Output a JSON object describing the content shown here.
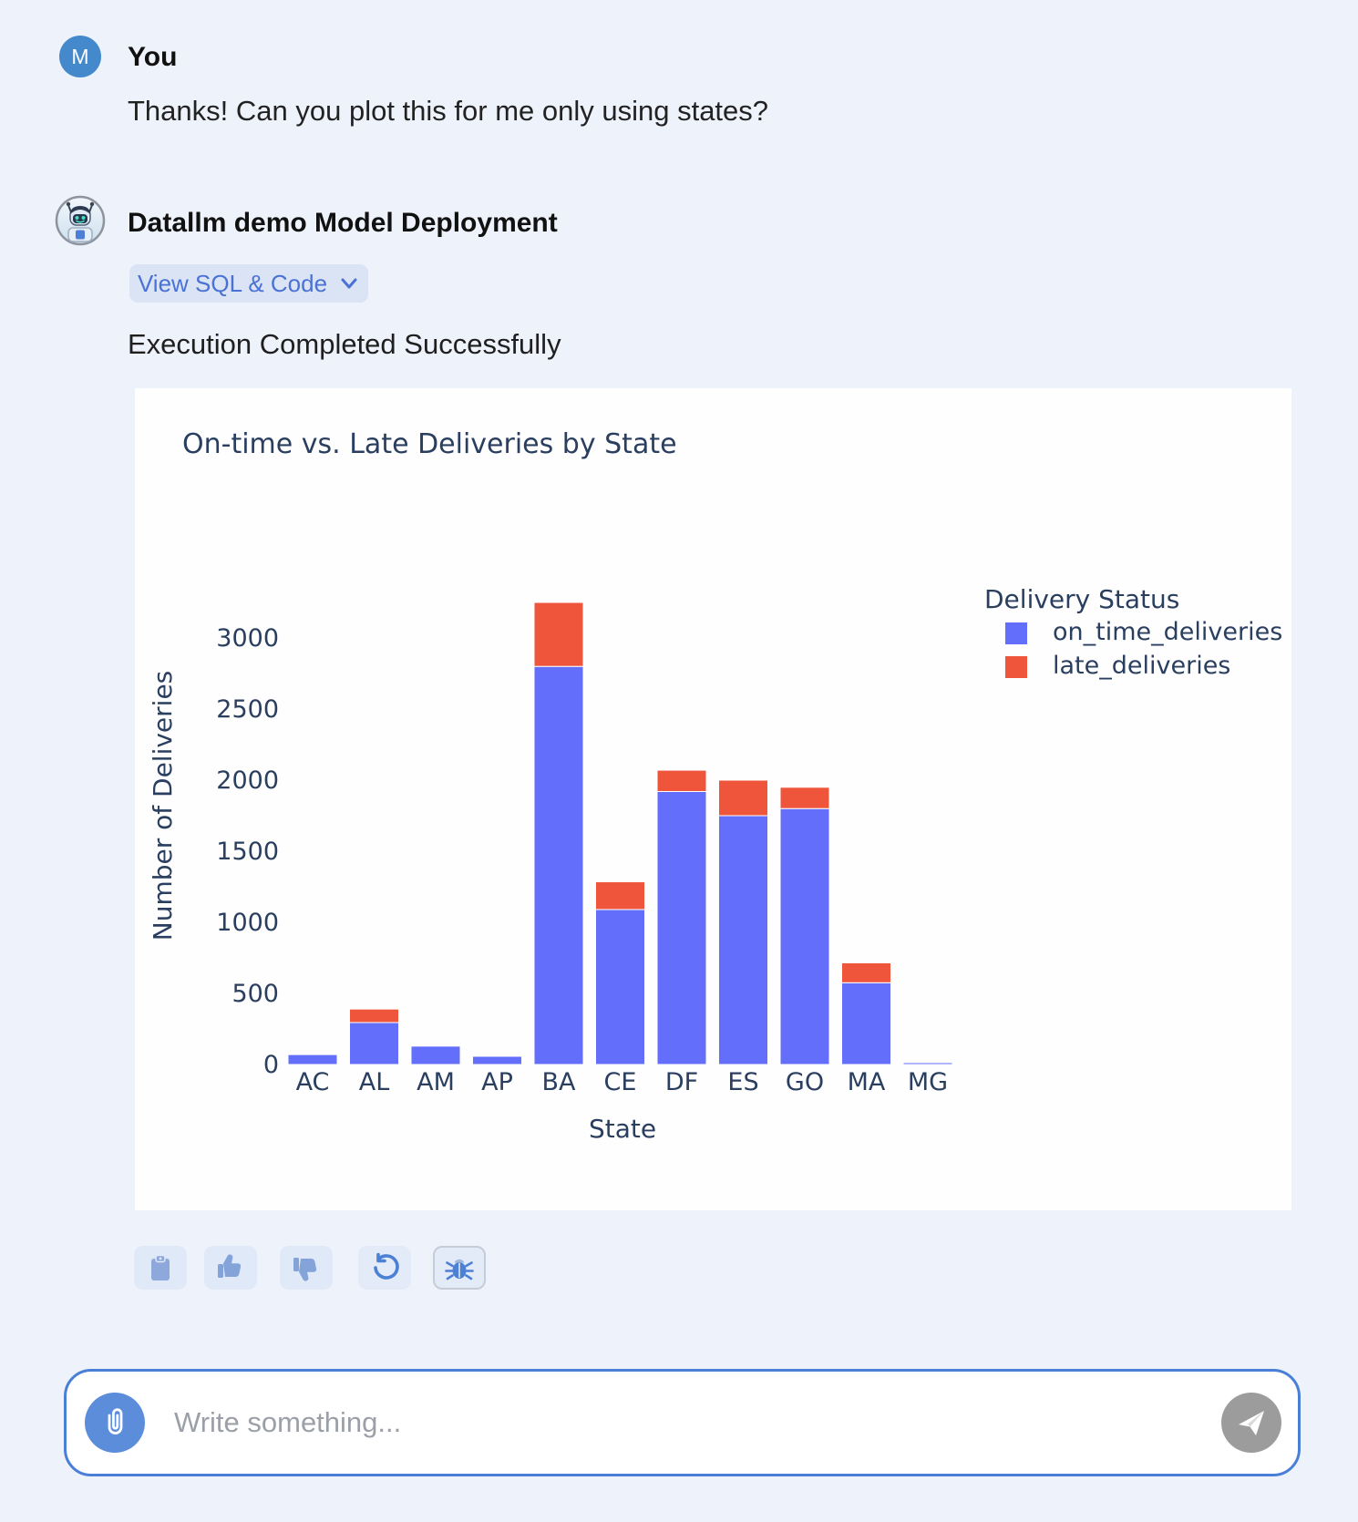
{
  "user_message": {
    "avatar_initial": "M",
    "sender": "You",
    "text": "Thanks! Can you plot this for me only using states?"
  },
  "bot_message": {
    "sender": "Datallm demo Model Deployment",
    "view_sql_button_label": "View SQL & Code",
    "status": "Execution Completed Successfully"
  },
  "chart_data": {
    "type": "bar",
    "stacked": true,
    "title": "On-time vs. Late Deliveries by State",
    "xlabel": "State",
    "ylabel": "Number of Deliveries",
    "legend_title": "Delivery Status",
    "legend_position": "top-right",
    "grid": false,
    "categories": [
      "AC",
      "AL",
      "AM",
      "AP",
      "BA",
      "CE",
      "DF",
      "ES",
      "GO",
      "MA",
      "MG"
    ],
    "series": [
      {
        "name": "on_time_deliveries",
        "color": "#636EFA",
        "values": [
          70,
          295,
          130,
          58,
          2800,
          1090,
          1920,
          1750,
          1800,
          575,
          12
        ]
      },
      {
        "name": "late_deliveries",
        "color": "#EF553B",
        "values": [
          5,
          95,
          6,
          4,
          450,
          195,
          150,
          250,
          150,
          140,
          3
        ]
      }
    ],
    "yticks": [
      0,
      500,
      1000,
      1500,
      2000,
      2500,
      3000
    ],
    "ylim": [
      0,
      3450
    ],
    "text_color": "#2a3f5f"
  },
  "actions": {
    "copy_label": "copy",
    "thumbs_up_label": "thumbs up",
    "thumbs_down_label": "thumbs down",
    "retry_label": "retry",
    "bug_label": "report bug"
  },
  "composer": {
    "placeholder": "Write something...",
    "attach_icon": "paperclip-icon",
    "send_icon": "paper-plane-icon"
  },
  "colors": {
    "page_bg": "#eef2fb",
    "card_bg": "#fefeff",
    "accent_blue": "#4a72d4",
    "user_avatar_bg": "#4389cb",
    "chip_bg": "#dbe4f4",
    "composer_border": "#4a7fd8",
    "attach_circle": "#5b8ddb",
    "send_circle": "#9c9c9c"
  }
}
